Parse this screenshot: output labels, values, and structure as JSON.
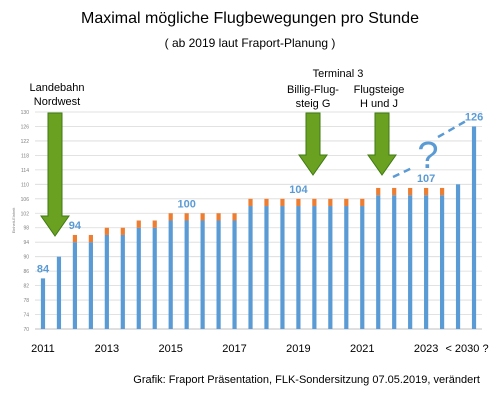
{
  "chart_data": {
    "type": "bar",
    "title": "Maximal mögliche Flugbewegungen pro Stunde",
    "subtitle": "( ab 2019 laut Fraport-Planung )",
    "ylabel": "Einheit-Einheit",
    "ylim": [
      70,
      130
    ],
    "yticks": [
      70,
      74,
      78,
      82,
      86,
      90,
      94,
      98,
      102,
      106,
      110,
      114,
      118,
      122,
      126,
      130
    ],
    "xtick_labels": [
      "2011",
      "2013",
      "2015",
      "2017",
      "2019",
      "2021",
      "2023",
      "< 2030 ?"
    ],
    "grid": true,
    "colors": {
      "base": "#5b9bd5",
      "extra": "#ed7d31",
      "label": "#5b9bd5",
      "arrow": "#6aa121",
      "arrow_edge": "#3f7a12"
    },
    "series": [
      {
        "name": "base",
        "values": [
          84,
          90,
          94,
          94,
          96,
          96,
          98,
          98,
          100,
          100,
          100,
          100,
          100,
          104,
          104,
          104,
          104,
          104,
          104,
          104,
          104,
          107,
          107,
          107,
          107,
          107,
          110,
          126
        ]
      },
      {
        "name": "extra",
        "values": [
          0,
          0,
          2,
          2,
          2,
          2,
          2,
          2,
          2,
          2,
          2,
          2,
          2,
          2,
          2,
          2,
          2,
          2,
          2,
          2,
          2,
          2,
          2,
          2,
          2,
          2,
          0,
          0
        ]
      }
    ],
    "data_labels": [
      {
        "index": 0,
        "text": "84"
      },
      {
        "index": 2,
        "text": "94"
      },
      {
        "index": 9,
        "text": "100"
      },
      {
        "index": 16,
        "text": "104"
      },
      {
        "index": 24,
        "text": "107"
      },
      {
        "index": 27,
        "text": "126"
      }
    ],
    "annotations": {
      "landebahn_line1": "Landebahn",
      "landebahn_line2": "Nordwest",
      "terminal": "Terminal 3",
      "billig_line1": "Billig-Flug-",
      "billig_line2": "steig G",
      "flugsteige_line1": "Flugsteige",
      "flugsteige_line2": "H und J",
      "question": "?"
    },
    "source": "Grafik:  Fraport Präsentation, FLK-Sondersitzung 07.05.2019,  verändert"
  }
}
